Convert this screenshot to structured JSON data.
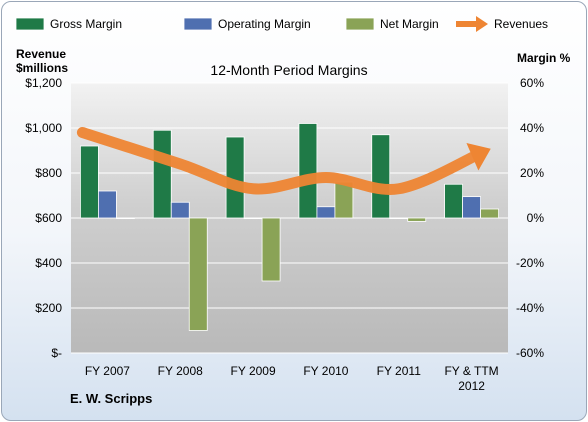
{
  "chart_data": {
    "type": "bar",
    "title": "12-Month Period Margins",
    "company": "E. W. Scripps",
    "left_axis": {
      "title_line1": "Revenue",
      "title_line2": "$millions",
      "range": [
        0,
        1200
      ],
      "ticks": [
        {
          "value": 0,
          "label": "$-"
        },
        {
          "value": 200,
          "label": "$200"
        },
        {
          "value": 400,
          "label": "$400"
        },
        {
          "value": 600,
          "label": "$600"
        },
        {
          "value": 800,
          "label": "$800"
        },
        {
          "value": 1000,
          "label": "$1,000"
        },
        {
          "value": 1200,
          "label": "$1,200"
        }
      ]
    },
    "right_axis": {
      "title": "Margin %",
      "range": [
        -60,
        60
      ],
      "ticks": [
        {
          "value": 60,
          "label": "60%"
        },
        {
          "value": 40,
          "label": "40%"
        },
        {
          "value": 20,
          "label": "20%"
        },
        {
          "value": 0,
          "label": "0%"
        },
        {
          "value": -20,
          "label": "-20%"
        },
        {
          "value": -40,
          "label": "-40%"
        },
        {
          "value": -60,
          "label": "-60%"
        }
      ]
    },
    "categories": [
      {
        "line1": "FY 2007",
        "line2": ""
      },
      {
        "line1": "FY 2008",
        "line2": ""
      },
      {
        "line1": "FY 2009",
        "line2": ""
      },
      {
        "line1": "FY 2010",
        "line2": ""
      },
      {
        "line1": "FY 2011",
        "line2": ""
      },
      {
        "line1": "FY & TTM",
        "line2": "2012"
      }
    ],
    "series": [
      {
        "name": "Gross Margin",
        "axis": "right",
        "color": "#1f7a47",
        "values": [
          32,
          39,
          36,
          42,
          37,
          15
        ]
      },
      {
        "name": "Operating Margin",
        "axis": "right",
        "color": "#4f6fb0",
        "values": [
          12,
          7,
          0,
          5,
          0,
          9.5
        ]
      },
      {
        "name": "Net Margin",
        "axis": "right",
        "color": "#8aa356",
        "values": [
          0,
          -50,
          -28,
          16,
          -1.5,
          4
        ]
      }
    ],
    "revenues": {
      "name": "Revenues",
      "axis": "left",
      "color": "#ee8533",
      "values": [
        980,
        840,
        730,
        780,
        730,
        890
      ]
    },
    "grid": true,
    "legend_position": "top"
  }
}
